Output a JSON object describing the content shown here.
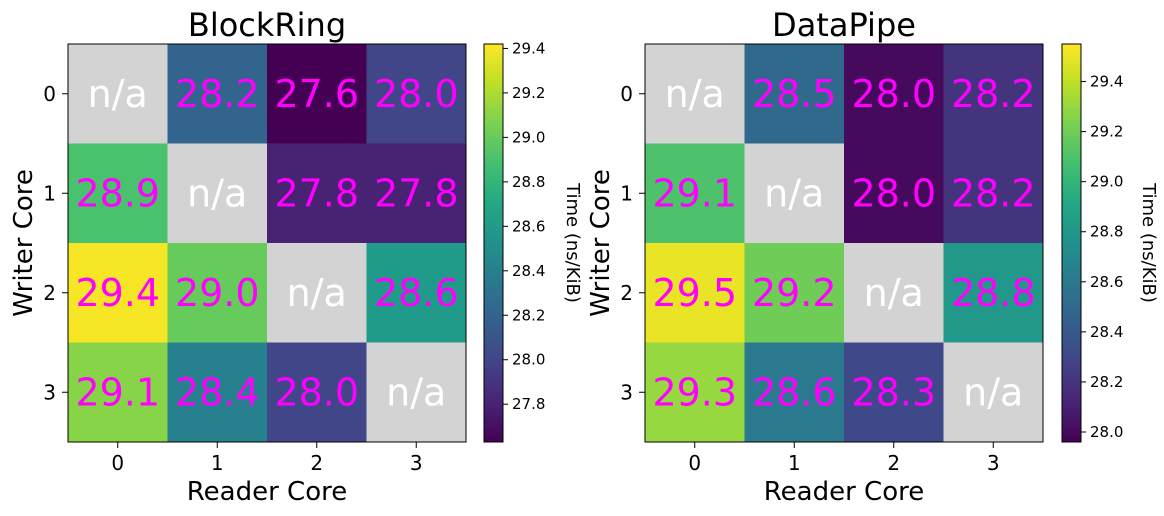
{
  "chart_data": [
    {
      "type": "heatmap",
      "title": "BlockRing",
      "xlabel": "Reader Core",
      "ylabel": "Writer Core",
      "x_categories": [
        "0",
        "1",
        "2",
        "3"
      ],
      "y_categories": [
        "0",
        "1",
        "2",
        "3"
      ],
      "values": [
        [
          null,
          28.2,
          27.6,
          28.0
        ],
        [
          28.9,
          null,
          27.8,
          27.8
        ],
        [
          29.4,
          29.0,
          null,
          28.6
        ],
        [
          29.1,
          28.4,
          28.0,
          null
        ]
      ],
      "cell_labels": [
        [
          "n/a",
          "28.2",
          "27.6",
          "28.0"
        ],
        [
          "28.9",
          "n/a",
          "27.8",
          "27.8"
        ],
        [
          "29.4",
          "29.0",
          "n/a",
          "28.6"
        ],
        [
          "29.1",
          "28.4",
          "28.0",
          "n/a"
        ]
      ],
      "colorbar_label": "Time (ns/KiB)",
      "colorbar_range": [
        27.63,
        29.42
      ],
      "colorbar_ticks": [
        "27.8",
        "28.0",
        "28.2",
        "28.4",
        "28.6",
        "28.8",
        "29.0",
        "29.2",
        "29.4"
      ],
      "colormap": "viridis",
      "missing_color": "#d3d3d3"
    },
    {
      "type": "heatmap",
      "title": "DataPipe",
      "xlabel": "Reader Core",
      "ylabel": "Writer Core",
      "x_categories": [
        "0",
        "1",
        "2",
        "3"
      ],
      "y_categories": [
        "0",
        "1",
        "2",
        "3"
      ],
      "values": [
        [
          null,
          28.5,
          28.0,
          28.2
        ],
        [
          29.1,
          null,
          28.0,
          28.2
        ],
        [
          29.5,
          29.2,
          null,
          28.8
        ],
        [
          29.3,
          28.6,
          28.3,
          null
        ]
      ],
      "cell_labels": [
        [
          "n/a",
          "28.5",
          "28.0",
          "28.2"
        ],
        [
          "29.1",
          "n/a",
          "28.0",
          "28.2"
        ],
        [
          "29.5",
          "29.2",
          "n/a",
          "28.8"
        ],
        [
          "29.3",
          "28.6",
          "28.3",
          "n/a"
        ]
      ],
      "colorbar_label": "Time (ns/KiB)",
      "colorbar_range": [
        27.96,
        29.55
      ],
      "colorbar_ticks": [
        "28.0",
        "28.2",
        "28.4",
        "28.6",
        "28.8",
        "29.0",
        "29.2",
        "29.4"
      ],
      "colormap": "viridis",
      "missing_color": "#d3d3d3"
    }
  ],
  "colors": {
    "value_text": "#ff00ff",
    "missing_text": "#ffffff"
  }
}
